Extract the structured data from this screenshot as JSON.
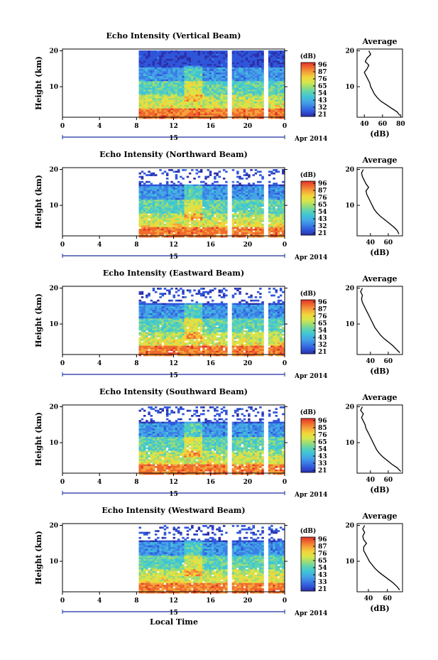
{
  "colors": {
    "scale": [
      "#2b2fa8",
      "#2f55d9",
      "#3a7fe6",
      "#45a6e6",
      "#3fc4d6",
      "#5fd2b0",
      "#9bdd75",
      "#d7e64a",
      "#f2d53a",
      "#f5a33a",
      "#ef6a2e",
      "#e4302a"
    ],
    "gap": "#ffffff",
    "line": "#000000"
  },
  "chart_data": {
    "type": "heatmap",
    "xlabel": "Local Time",
    "date_label": "Apr 2014",
    "day_label": "15",
    "x_ticks": [
      "0",
      "4",
      "8",
      "12",
      "16",
      "20",
      "0"
    ],
    "y_ticks": [
      "10",
      "20"
    ],
    "ylabel": "Height (km)",
    "xlim": [
      0,
      24
    ],
    "ylim": [
      1.5,
      20.5
    ],
    "data_gaps_hours": [
      [
        0,
        8
      ],
      [
        17.6,
        18.2
      ],
      [
        21.5,
        22.0
      ]
    ],
    "colorbar": {
      "unit": "(dB)",
      "ticks": [
        "96",
        "87",
        "76",
        "65",
        "54",
        "43",
        "32",
        "21"
      ]
    },
    "profile_xlabel": "(dB)",
    "profile_title": "Average",
    "panels": [
      {
        "title": "Echo Intensity (Vertical Beam)",
        "colorbar_ticks": [
          "96",
          "87",
          "76",
          "65",
          "54",
          "43",
          "32",
          "21"
        ],
        "profile_x_ticks": [
          "40",
          "60",
          "80"
        ],
        "profile_xlim": [
          32,
          82
        ],
        "profile_height_km": [
          2,
          3,
          4,
          5,
          6,
          7,
          8,
          9,
          10,
          11,
          12,
          13,
          14,
          15,
          16,
          17,
          18,
          19,
          20
        ],
        "profile_db": [
          79,
          76,
          70,
          64,
          58,
          54,
          51,
          49,
          47,
          46,
          44,
          42,
          40,
          43,
          45,
          41,
          43,
          47,
          45
        ]
      },
      {
        "title": "Echo Intensity (Northward Beam)",
        "colorbar_ticks": [
          "96",
          "87",
          "76",
          "65",
          "54",
          "43",
          "32",
          "21"
        ],
        "profile_x_ticks": [
          "40",
          "60"
        ],
        "profile_xlim": [
          25,
          76
        ],
        "profile_height_km": [
          2,
          3,
          4,
          5,
          6,
          7,
          8,
          9,
          10,
          11,
          12,
          13,
          14,
          15,
          16,
          17,
          18,
          19,
          20
        ],
        "profile_db": [
          72,
          70,
          66,
          61,
          56,
          51,
          47,
          44,
          42,
          40,
          38,
          36,
          35,
          38,
          35,
          33,
          31,
          30,
          32
        ]
      },
      {
        "title": "Echo Intensity (Eastward Beam)",
        "colorbar_ticks": [
          "96",
          "87",
          "76",
          "65",
          "54",
          "43",
          "32",
          "21"
        ],
        "profile_x_ticks": [
          "40",
          "60"
        ],
        "profile_xlim": [
          25,
          76
        ],
        "profile_height_km": [
          2,
          3,
          4,
          5,
          6,
          7,
          8,
          9,
          10,
          11,
          12,
          13,
          14,
          15,
          16,
          17,
          18,
          19,
          20
        ],
        "profile_db": [
          73,
          69,
          65,
          60,
          55,
          51,
          48,
          45,
          43,
          41,
          39,
          37,
          35,
          33,
          31,
          30,
          31,
          29,
          31
        ]
      },
      {
        "title": "Echo Intensity (Southward Beam)",
        "colorbar_ticks": [
          "96",
          "85",
          "76",
          "65",
          "54",
          "43",
          "33",
          "21"
        ],
        "profile_x_ticks": [
          "40",
          "60"
        ],
        "profile_xlim": [
          25,
          76
        ],
        "profile_height_km": [
          2,
          3,
          4,
          5,
          6,
          7,
          8,
          9,
          10,
          11,
          12,
          13,
          14,
          15,
          16,
          17,
          18,
          19,
          20
        ],
        "profile_db": [
          74,
          70,
          64,
          59,
          54,
          50,
          47,
          45,
          43,
          41,
          39,
          37,
          35,
          34,
          32,
          30,
          32,
          29,
          31
        ]
      },
      {
        "title": "Echo Intensity (Westward Beam)",
        "colorbar_ticks": [
          "96",
          "87",
          "76",
          "65",
          "54",
          "43",
          "33",
          "21"
        ],
        "profile_x_ticks": [
          "40",
          "60"
        ],
        "profile_xlim": [
          28,
          76
        ],
        "profile_height_km": [
          2,
          3,
          4,
          5,
          6,
          7,
          8,
          9,
          10,
          11,
          12,
          13,
          14,
          15,
          16,
          17,
          18,
          19,
          20
        ],
        "profile_db": [
          73,
          70,
          66,
          61,
          56,
          51,
          47,
          44,
          41,
          39,
          37,
          35,
          35,
          38,
          35,
          34,
          36,
          34,
          36
        ]
      }
    ]
  }
}
